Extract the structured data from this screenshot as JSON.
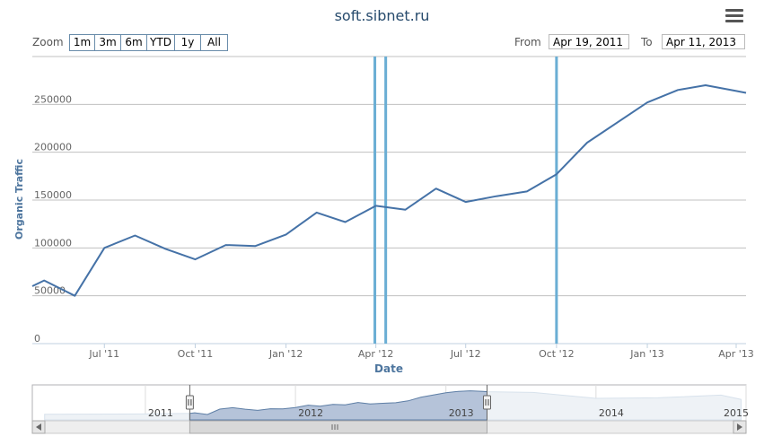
{
  "title": "soft.sibnet.ru",
  "menu_icon": "hamburger-menu-icon",
  "range_selector": {
    "zoom_label": "Zoom",
    "buttons": [
      "1m",
      "3m",
      "6m",
      "YTD",
      "1y",
      "All"
    ],
    "from_label": "From",
    "from_value": "Apr 19, 2011",
    "to_label": "To",
    "to_value": "Apr 11, 2013"
  },
  "chart_data": {
    "type": "line",
    "title": "soft.sibnet.ru",
    "xlabel": "Date",
    "ylabel": "Organic Traffic",
    "ylim": [
      0,
      300000
    ],
    "yticks": [
      0,
      50000,
      100000,
      150000,
      200000,
      250000
    ],
    "xticks": [
      "Jul '11",
      "Oct '11",
      "Jan '12",
      "Apr '12",
      "Jul '12",
      "Oct '12",
      "Jan '13",
      "Apr '13"
    ],
    "grid": true,
    "series": [
      {
        "color": "#4572a7",
        "x": [
          "2011-04-19",
          "2011-05-01",
          "2011-06-01",
          "2011-07-01",
          "2011-08-01",
          "2011-09-01",
          "2011-10-01",
          "2011-11-01",
          "2011-12-01",
          "2012-01-01",
          "2012-02-01",
          "2012-03-01",
          "2012-04-01",
          "2012-05-01",
          "2012-06-01",
          "2012-07-01",
          "2012-08-01",
          "2012-09-01",
          "2012-10-01",
          "2012-11-01",
          "2013-01-01",
          "2013-02-01",
          "2013-03-01",
          "2013-04-01",
          "2013-04-11"
        ],
        "y": [
          60000,
          66000,
          50000,
          100000,
          113000,
          99000,
          88000,
          103000,
          102000,
          114000,
          137000,
          127000,
          144000,
          140000,
          162000,
          148000,
          154000,
          159000,
          177000,
          210000,
          252000,
          265000,
          270000,
          264000,
          262000
        ]
      }
    ],
    "plot_lines": {
      "color": "#6aaed4",
      "x": [
        "2012-03-31",
        "2012-04-11",
        "2012-10-01"
      ]
    },
    "navigator": {
      "labels": [
        "2011",
        "2012",
        "2013",
        "2014",
        "2015"
      ],
      "selected_range": [
        "2011-04-19",
        "2013-04-11"
      ]
    }
  }
}
